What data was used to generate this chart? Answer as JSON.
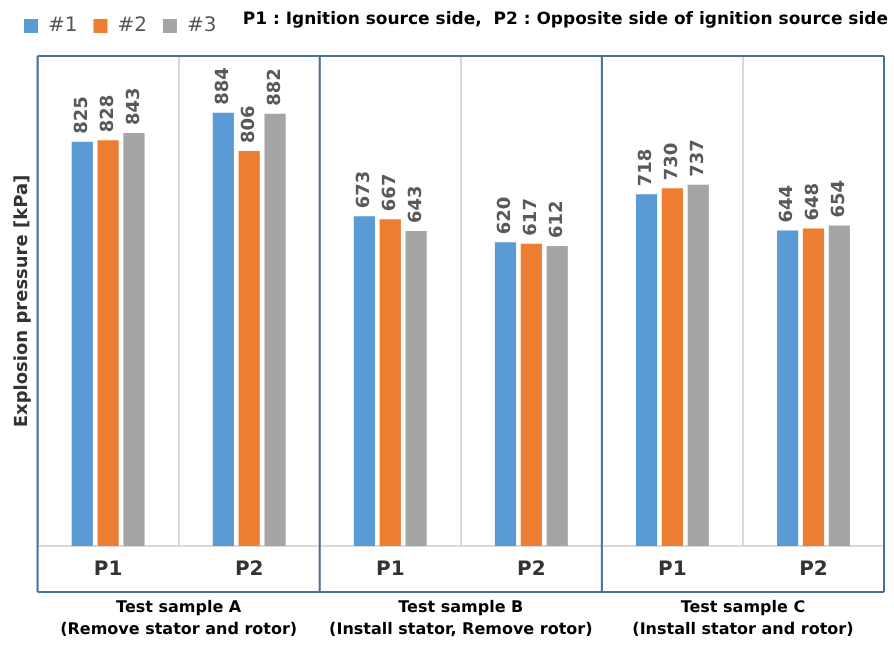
{
  "chart_data": {
    "type": "bar",
    "ylabel": "Explosion pressure [kPa]",
    "categories": [
      "P1",
      "P2",
      "P1",
      "P2",
      "P1",
      "P2"
    ],
    "series": [
      {
        "name": "#1",
        "color": "#5b9bd5",
        "values": [
          825,
          884,
          673,
          620,
          718,
          644
        ]
      },
      {
        "name": "#2",
        "color": "#ed7d31",
        "values": [
          828,
          806,
          667,
          617,
          730,
          648
        ]
      },
      {
        "name": "#3",
        "color": "#a5a5a5",
        "values": [
          843,
          882,
          643,
          612,
          737,
          654
        ]
      }
    ],
    "ylim": [
      0,
      1000
    ],
    "tick_labels": "x",
    "data_labels": true,
    "grid": "x",
    "legend": "top left",
    "annotations": [
      "P1 : Ignition source side,  P2 : Opposite side of ignition source side",
      "Test sample A\n(Remove stator and rotor)",
      "Test sample B\n(Install stator, Remove rotor)",
      "Test sample C\n(Install stator and rotor)"
    ]
  }
}
